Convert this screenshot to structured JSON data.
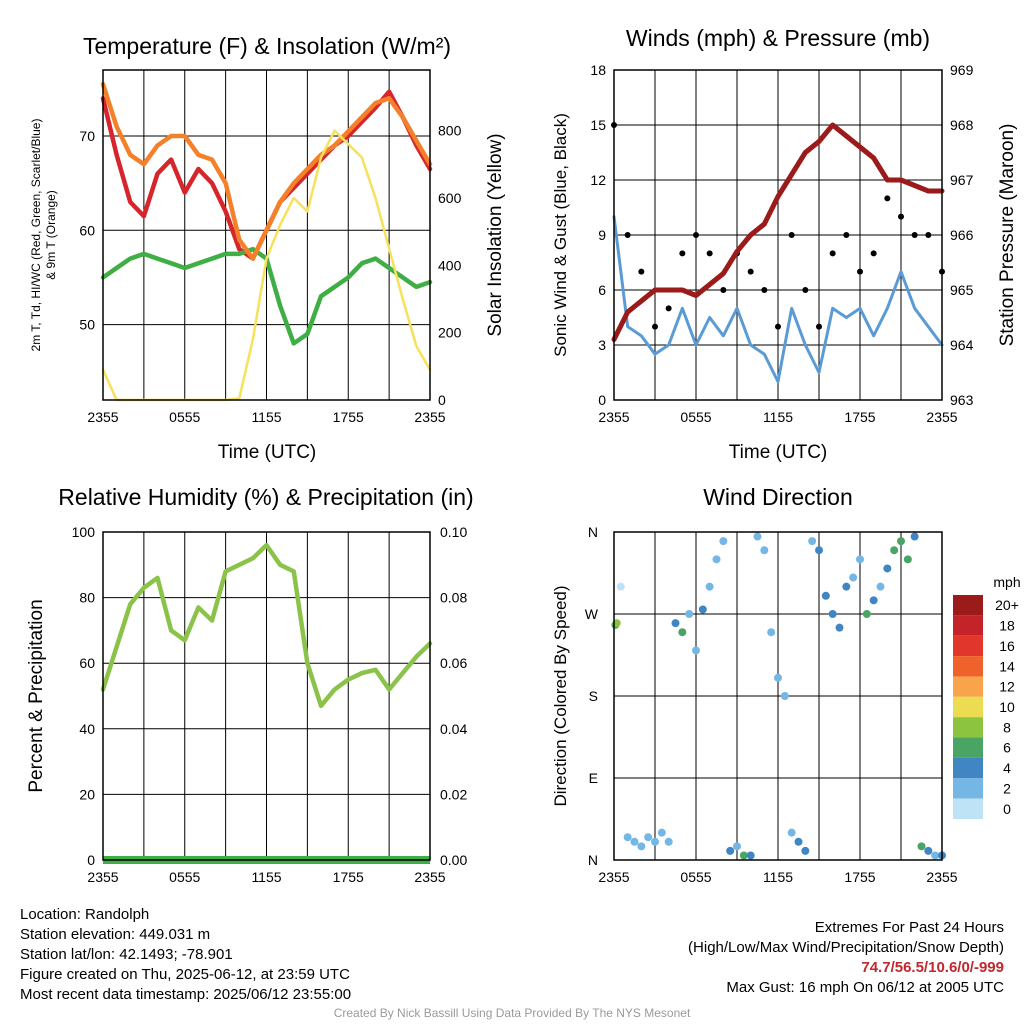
{
  "colors": {
    "t2m": "#d7262b",
    "td": "#3fae44",
    "hi": "#c5262b",
    "t9m": "#f4812a",
    "solar": "#f7e15a",
    "wind": "#5b9bd5",
    "gust": "#000000",
    "pressure": "#9b1a1a",
    "rh": "#8bc34a",
    "precip": "#3fae44"
  },
  "panels": {
    "temp": {
      "title": "Temperature (F) & Insolation (W/m²)",
      "ylabel_line1": "2m T, Td, HI/WC (Red, Green, Scarlet/Blue)",
      "ylabel_line2": "& 9m T (Orange)",
      "y2label": "Solar Insolation (Yellow)",
      "xlabel": "Time (UTC)"
    },
    "wind": {
      "title": "Winds (mph) & Pressure (mb)",
      "ylabel": "Sonic Wind & Gust (Blue, Black)",
      "y2label": "Station Pressure (Maroon)",
      "xlabel": "Time (UTC)"
    },
    "rh": {
      "title": "Relative Humidity (%) & Precipitation (in)",
      "ylabel": "Percent & Precipitation"
    },
    "dir": {
      "title": "Wind Direction",
      "ylabel": "Direction (Colored By Speed)",
      "legend_title": "mph",
      "legend_labels": [
        "20+",
        "18",
        "16",
        "14",
        "12",
        "10",
        "8",
        "6",
        "4",
        "2",
        "0"
      ],
      "legend_colors": [
        "#9b1b1b",
        "#c4232a",
        "#e0362c",
        "#f0622c",
        "#f7a44a",
        "#ecdc52",
        "#8cc43f",
        "#4aa564",
        "#3f86c2",
        "#74b7e4",
        "#bfe3f6"
      ]
    }
  },
  "footer": {
    "location": "Location: Randolph",
    "elevation": "Station elevation: 449.031 m",
    "latlon": "Station lat/lon: 42.1493; -78.901",
    "created": "Figure created on Thu, 2025-06-12, at 23:59 UTC",
    "recent": "Most recent data timestamp: 2025/06/12 23:55:00",
    "extremes_title": "Extremes For Past 24 Hours",
    "extremes_sub": "(High/Low/Max Wind/Precipitation/Snow Depth)",
    "extremes_values": "74.7/56.5/10.6/0/-999",
    "max_gust": "Max Gust: 16 mph On 06/12 at 2005 UTC",
    "credit": "Created By Nick Bassill Using Data Provided By The NYS Mesonet"
  },
  "chart_data": [
    {
      "type": "line",
      "title": "Temperature (F) & Insolation (W/m²)",
      "xlabel": "Time (UTC)",
      "ylabel": "2m T, Td, HI/WC (Red, Green, Scarlet/Blue) & 9m T (Orange)",
      "y2label": "Solar Insolation (Yellow)",
      "x_ticks": [
        "2355",
        "0555",
        "1155",
        "1755",
        "2355"
      ],
      "x": [
        0,
        1,
        2,
        3,
        4,
        5,
        6,
        7,
        8,
        9,
        10,
        11,
        12,
        13,
        14,
        15,
        16,
        17,
        18,
        19,
        20,
        21,
        22,
        23,
        24
      ],
      "ylim": [
        42,
        77
      ],
      "yticks": [
        50,
        60,
        70
      ],
      "y2lim": [
        0,
        980
      ],
      "y2ticks": [
        0,
        200,
        400,
        600,
        800
      ],
      "series": [
        {
          "name": "2m T",
          "axis": "left",
          "color": "#d7262b",
          "values": [
            74,
            68,
            63,
            61.5,
            66,
            67.5,
            64,
            66.5,
            65,
            62,
            58,
            57,
            60,
            63,
            64.5,
            66,
            67.5,
            69,
            70,
            71.5,
            73,
            74.7,
            72,
            69,
            66.5
          ]
        },
        {
          "name": "2m Td",
          "axis": "left",
          "color": "#3fae44",
          "values": [
            55,
            56,
            57,
            57.5,
            57,
            56.5,
            56,
            56.5,
            57,
            57.5,
            57.5,
            58,
            57,
            52,
            48,
            49,
            53,
            54,
            55,
            56.5,
            57,
            56,
            55,
            54,
            54.5
          ]
        },
        {
          "name": "9m T",
          "axis": "left",
          "color": "#f4812a",
          "values": [
            75.5,
            71,
            68,
            67,
            69,
            70,
            70,
            68,
            67.5,
            65,
            59,
            57,
            60,
            63,
            65,
            66.5,
            68,
            69,
            70.5,
            72,
            73.5,
            74,
            72,
            69.5,
            67
          ]
        },
        {
          "name": "Solar",
          "axis": "right",
          "color": "#f7e15a",
          "values": [
            90,
            0,
            0,
            0,
            0,
            0,
            0,
            0,
            0,
            0,
            5,
            180,
            420,
            520,
            600,
            560,
            720,
            800,
            760,
            720,
            600,
            450,
            300,
            160,
            90
          ]
        }
      ]
    },
    {
      "type": "line",
      "title": "Winds (mph) & Pressure (mb)",
      "xlabel": "Time (UTC)",
      "ylabel": "Sonic Wind & Gust (Blue, Black)",
      "y2label": "Station Pressure (Maroon)",
      "x_ticks": [
        "2355",
        "0555",
        "1155",
        "1755",
        "2355"
      ],
      "x": [
        0,
        1,
        2,
        3,
        4,
        5,
        6,
        7,
        8,
        9,
        10,
        11,
        12,
        13,
        14,
        15,
        16,
        17,
        18,
        19,
        20,
        21,
        22,
        23,
        24
      ],
      "ylim": [
        0,
        18
      ],
      "yticks": [
        0,
        3,
        6,
        9,
        12,
        15,
        18
      ],
      "y2lim": [
        963,
        969
      ],
      "y2ticks": [
        963,
        964,
        965,
        966,
        967,
        968,
        969
      ],
      "series": [
        {
          "name": "Sonic Wind",
          "axis": "left",
          "color": "#5b9bd5",
          "values": [
            10,
            4,
            3.5,
            2.5,
            3,
            5,
            3,
            4.5,
            3.5,
            5,
            3,
            2.5,
            1,
            5,
            3,
            1.5,
            5,
            4.5,
            5,
            3.5,
            5,
            7,
            5,
            4,
            3
          ]
        },
        {
          "name": "Gust",
          "axis": "left",
          "color": "#000000",
          "values": [
            15,
            9,
            7,
            4,
            5,
            8,
            9,
            8,
            6,
            8,
            7,
            6,
            4,
            9,
            6,
            4,
            8,
            9,
            7,
            8,
            11,
            10,
            9,
            9,
            7
          ]
        },
        {
          "name": "Station Pressure",
          "axis": "right",
          "color": "#9b1a1a",
          "values": [
            964.1,
            964.6,
            964.8,
            965,
            965,
            965,
            964.9,
            965.1,
            965.3,
            965.7,
            966,
            966.2,
            966.7,
            967.1,
            967.5,
            967.7,
            968,
            967.8,
            967.6,
            967.4,
            967,
            967,
            966.9,
            966.8,
            966.8
          ]
        }
      ]
    },
    {
      "type": "line",
      "title": "Relative Humidity (%) & Precipitation (in)",
      "ylabel": "Percent & Precipitation",
      "x_ticks": [
        "2355",
        "0555",
        "1155",
        "1755",
        "2355"
      ],
      "x": [
        0,
        1,
        2,
        3,
        4,
        5,
        6,
        7,
        8,
        9,
        10,
        11,
        12,
        13,
        14,
        15,
        16,
        17,
        18,
        19,
        20,
        21,
        22,
        23,
        24
      ],
      "ylim": [
        0,
        100
      ],
      "yticks": [
        0,
        20,
        40,
        60,
        80,
        100
      ],
      "y2lim": [
        0,
        0.1
      ],
      "y2ticks": [
        "0.00",
        "0.02",
        "0.04",
        "0.06",
        "0.08",
        "0.10"
      ],
      "series": [
        {
          "name": "RH",
          "axis": "left",
          "color": "#8bc34a",
          "values": [
            52,
            65,
            78,
            83,
            86,
            70,
            67,
            77,
            73,
            88,
            90,
            92,
            96,
            90,
            88,
            60,
            47,
            52,
            55,
            57,
            58,
            52,
            57,
            62,
            66
          ]
        },
        {
          "name": "Precipitation",
          "axis": "right",
          "color": "#3fae44",
          "values": [
            0,
            0,
            0,
            0,
            0,
            0,
            0,
            0,
            0,
            0,
            0,
            0,
            0,
            0,
            0,
            0,
            0,
            0,
            0,
            0,
            0,
            0,
            0,
            0,
            0
          ]
        }
      ]
    },
    {
      "type": "scatter",
      "title": "Wind Direction",
      "ylabel": "Direction (Colored By Speed)",
      "x_ticks": [
        "2355",
        "0555",
        "1155",
        "1755",
        "2355"
      ],
      "yticks": [
        "N",
        "E",
        "S",
        "W",
        "N"
      ],
      "ylim": [
        0,
        360
      ],
      "legend_title": "mph",
      "legend": [
        "20+",
        "18",
        "16",
        "14",
        "12",
        "10",
        "8",
        "6",
        "4",
        "2",
        "0"
      ],
      "points": [
        [
          0.1,
          258,
          6
        ],
        [
          0.2,
          260,
          8
        ],
        [
          0.5,
          300,
          1
        ],
        [
          1,
          25,
          2
        ],
        [
          1.5,
          20,
          2
        ],
        [
          2,
          15,
          2
        ],
        [
          2.5,
          25,
          2
        ],
        [
          3,
          20,
          3
        ],
        [
          3.5,
          30,
          2
        ],
        [
          4,
          20,
          3
        ],
        [
          4.5,
          260,
          4
        ],
        [
          5,
          250,
          6
        ],
        [
          5.5,
          270,
          3
        ],
        [
          6,
          230,
          2
        ],
        [
          6.5,
          275,
          5
        ],
        [
          7,
          300,
          3
        ],
        [
          7.5,
          330,
          2
        ],
        [
          8,
          350,
          3
        ],
        [
          8.5,
          10,
          4
        ],
        [
          9,
          15,
          3
        ],
        [
          9.5,
          5,
          6
        ],
        [
          10,
          5,
          4
        ],
        [
          10.5,
          355,
          3
        ],
        [
          11,
          340,
          2
        ],
        [
          11.5,
          250,
          2
        ],
        [
          12,
          200,
          3
        ],
        [
          12.5,
          180,
          2
        ],
        [
          13,
          30,
          2
        ],
        [
          13.5,
          20,
          4
        ],
        [
          14,
          10,
          4
        ],
        [
          14.5,
          350,
          3
        ],
        [
          15,
          340,
          4
        ],
        [
          15.5,
          290,
          5
        ],
        [
          16,
          270,
          5
        ],
        [
          16.5,
          255,
          4
        ],
        [
          17,
          300,
          4
        ],
        [
          17.5,
          310,
          3
        ],
        [
          18,
          330,
          2
        ],
        [
          18.5,
          270,
          6
        ],
        [
          19,
          285,
          4
        ],
        [
          19.5,
          300,
          3
        ],
        [
          20,
          320,
          4
        ],
        [
          20.5,
          340,
          6
        ],
        [
          21,
          350,
          7
        ],
        [
          21.5,
          330,
          6
        ],
        [
          22,
          355,
          5
        ],
        [
          22.5,
          15,
          6
        ],
        [
          23,
          10,
          4
        ],
        [
          23.5,
          5,
          3
        ],
        [
          24,
          5,
          4
        ]
      ]
    }
  ]
}
